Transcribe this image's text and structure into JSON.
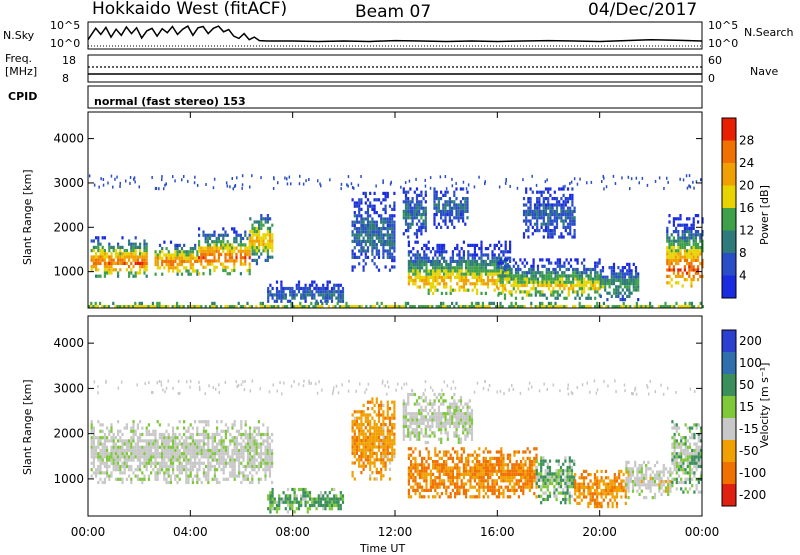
{
  "header": {
    "station": "Hokkaido West (fitACF)",
    "beam": "Beam 07",
    "date": "04/Dec/2017"
  },
  "noise_panel": {
    "left_label": "N.Sky",
    "left_ticks": [
      "10^5",
      "10^0"
    ],
    "right_ticks": [
      "10^5",
      "10^0"
    ],
    "right_label": "N.Search",
    "sky_noise_profile": [
      [
        0.0,
        1.2
      ],
      [
        0.3,
        3.8
      ],
      [
        0.5,
        2.4
      ],
      [
        0.7,
        4.0
      ],
      [
        0.9,
        1.8
      ],
      [
        1.1,
        3.6
      ],
      [
        1.3,
        2.2
      ],
      [
        1.5,
        4.1
      ],
      [
        1.7,
        2.6
      ],
      [
        1.9,
        3.9
      ],
      [
        2.1,
        1.6
      ],
      [
        2.3,
        3.2
      ],
      [
        2.5,
        3.8
      ],
      [
        2.7,
        2.0
      ],
      [
        2.9,
        3.7
      ],
      [
        3.1,
        2.8
      ],
      [
        3.3,
        4.2
      ],
      [
        3.5,
        2.4
      ],
      [
        3.7,
        3.6
      ],
      [
        3.9,
        4.3
      ],
      [
        4.1,
        2.2
      ],
      [
        4.3,
        3.9
      ],
      [
        4.5,
        4.2
      ],
      [
        4.7,
        2.6
      ],
      [
        4.9,
        3.8
      ],
      [
        5.1,
        4.3
      ],
      [
        5.3,
        3.0
      ],
      [
        5.5,
        3.5
      ],
      [
        5.7,
        2.0
      ],
      [
        5.9,
        1.5
      ],
      [
        6.1,
        2.6
      ],
      [
        6.3,
        1.2
      ],
      [
        6.5,
        1.8
      ],
      [
        6.7,
        1.0
      ],
      [
        7.0,
        0.9
      ],
      [
        8.0,
        0.9
      ],
      [
        9.0,
        0.8
      ],
      [
        10.0,
        0.9
      ],
      [
        11.0,
        0.8
      ],
      [
        12.0,
        1.0
      ],
      [
        13.0,
        0.9
      ],
      [
        14.0,
        0.8
      ],
      [
        15.0,
        0.9
      ],
      [
        16.0,
        0.8
      ],
      [
        17.0,
        0.9
      ],
      [
        18.0,
        1.0
      ],
      [
        19.0,
        0.9
      ],
      [
        20.0,
        0.8
      ],
      [
        21.0,
        1.0
      ],
      [
        22.0,
        1.2
      ],
      [
        23.0,
        1.1
      ],
      [
        24.0,
        0.9
      ]
    ]
  },
  "freq_panel": {
    "left_label_1": "Freq.",
    "left_label_2": "[MHz]",
    "left_ticks": [
      "18",
      "8"
    ],
    "right_ticks": [
      "60",
      "0"
    ],
    "right_label": "Nave"
  },
  "cpid_panel": {
    "label": "CPID",
    "mode": "normal (fast stereo) 153"
  },
  "chart_data": [
    {
      "type": "heatmap",
      "quantity": "Power",
      "ylabel": "Slant Range [km]",
      "xlabel": "Time UT",
      "x_ticks": [
        "00:00",
        "04:00",
        "08:00",
        "12:00",
        "16:00",
        "20:00",
        "00:00"
      ],
      "x_range_hours": [
        0,
        24
      ],
      "y_ticks": [
        "1000",
        "2000",
        "3000",
        "4000"
      ],
      "ylim": [
        180,
        4600
      ],
      "colorbar_label": "Power [dB]",
      "colorbar_ticks": [
        "4",
        "8",
        "12",
        "16",
        "20",
        "24",
        "28"
      ],
      "colorbar_range": [
        0,
        32
      ],
      "colorbar_colors": [
        "#1a2be0",
        "#2a4ec8",
        "#2f7a7a",
        "#3fa04a",
        "#e8d400",
        "#f0a000",
        "#f07000",
        "#e82000"
      ],
      "echo_regions": [
        {
          "t0": 0.1,
          "t1": 2.3,
          "r0": 900,
          "r1": 1800,
          "peak_r": 1250,
          "peak_dB": 27
        },
        {
          "t0": 2.6,
          "t1": 4.3,
          "r0": 950,
          "r1": 1700,
          "peak_r": 1250,
          "peak_dB": 26
        },
        {
          "t0": 4.3,
          "t1": 6.3,
          "r0": 950,
          "r1": 2000,
          "peak_r": 1350,
          "peak_dB": 27
        },
        {
          "t0": 6.3,
          "t1": 7.2,
          "r0": 1200,
          "r1": 2300,
          "peak_r": 1750,
          "peak_dB": 22
        },
        {
          "t0": 7.0,
          "t1": 10.0,
          "r0": 300,
          "r1": 800,
          "peak_r": 500,
          "peak_dB": 9
        },
        {
          "t0": 10.3,
          "t1": 12.0,
          "r0": 1000,
          "r1": 2800,
          "peak_r": 1800,
          "peak_dB": 9
        },
        {
          "t0": 12.3,
          "t1": 13.2,
          "r0": 1800,
          "r1": 2900,
          "peak_r": 2300,
          "peak_dB": 10
        },
        {
          "t0": 13.5,
          "t1": 14.8,
          "r0": 2000,
          "r1": 2900,
          "peak_r": 2500,
          "peak_dB": 9
        },
        {
          "t0": 12.5,
          "t1": 16.5,
          "r0": 500,
          "r1": 1700,
          "peak_r": 800,
          "peak_dB": 22
        },
        {
          "t0": 16.0,
          "t1": 20.0,
          "r0": 400,
          "r1": 1300,
          "peak_r": 700,
          "peak_dB": 20
        },
        {
          "t0": 17.0,
          "t1": 19.0,
          "r0": 1800,
          "r1": 2900,
          "peak_r": 2300,
          "peak_dB": 8
        },
        {
          "t0": 20.0,
          "t1": 21.5,
          "r0": 400,
          "r1": 1200,
          "peak_r": 700,
          "peak_dB": 14
        },
        {
          "t0": 22.6,
          "t1": 24.0,
          "r0": 700,
          "r1": 2300,
          "peak_r": 1100,
          "peak_dB": 28
        },
        {
          "t0": 0.0,
          "t1": 24.0,
          "r0": 200,
          "r1": 320,
          "peak_r": 250,
          "peak_dB": 16
        }
      ]
    },
    {
      "type": "heatmap",
      "quantity": "Velocity",
      "ylabel": "Slant Range [km]",
      "xlabel": "Time UT",
      "x_ticks": [
        "00:00",
        "04:00",
        "08:00",
        "12:00",
        "16:00",
        "20:00",
        "00:00"
      ],
      "x_range_hours": [
        0,
        24
      ],
      "y_ticks": [
        "1000",
        "2000",
        "3000",
        "4000"
      ],
      "ylim": [
        180,
        4600
      ],
      "colorbar_label": "Velocity [m s⁻¹]",
      "colorbar_ticks": [
        "200",
        "100",
        "50",
        "15",
        "-15",
        "-50",
        "-100",
        "-200"
      ],
      "colorbar_colors": [
        "#2b3fd0",
        "#2f6fae",
        "#3a8f5a",
        "#7ec83a",
        "#c8c8c8",
        "#f0a000",
        "#f07000",
        "#e02010"
      ],
      "echo_regions": [
        {
          "t0": 0.1,
          "t1": 7.2,
          "r0": 900,
          "r1": 2300,
          "velocity": 0
        },
        {
          "t0": 7.0,
          "t1": 10.0,
          "r0": 300,
          "r1": 800,
          "velocity": 40
        },
        {
          "t0": 10.3,
          "t1": 12.0,
          "r0": 1000,
          "r1": 2800,
          "velocity": -60
        },
        {
          "t0": 12.3,
          "t1": 15.0,
          "r0": 1800,
          "r1": 2900,
          "velocity": 0
        },
        {
          "t0": 12.5,
          "t1": 17.5,
          "r0": 600,
          "r1": 1700,
          "velocity": -80
        },
        {
          "t0": 17.5,
          "t1": 19.0,
          "r0": 500,
          "r1": 1500,
          "velocity": 30
        },
        {
          "t0": 19.0,
          "t1": 21.0,
          "r0": 400,
          "r1": 1200,
          "velocity": -70
        },
        {
          "t0": 21.0,
          "t1": 22.8,
          "r0": 600,
          "r1": 1400,
          "velocity": -5
        },
        {
          "t0": 22.8,
          "t1": 24.0,
          "r0": 700,
          "r1": 2300,
          "velocity": 20
        }
      ]
    }
  ]
}
